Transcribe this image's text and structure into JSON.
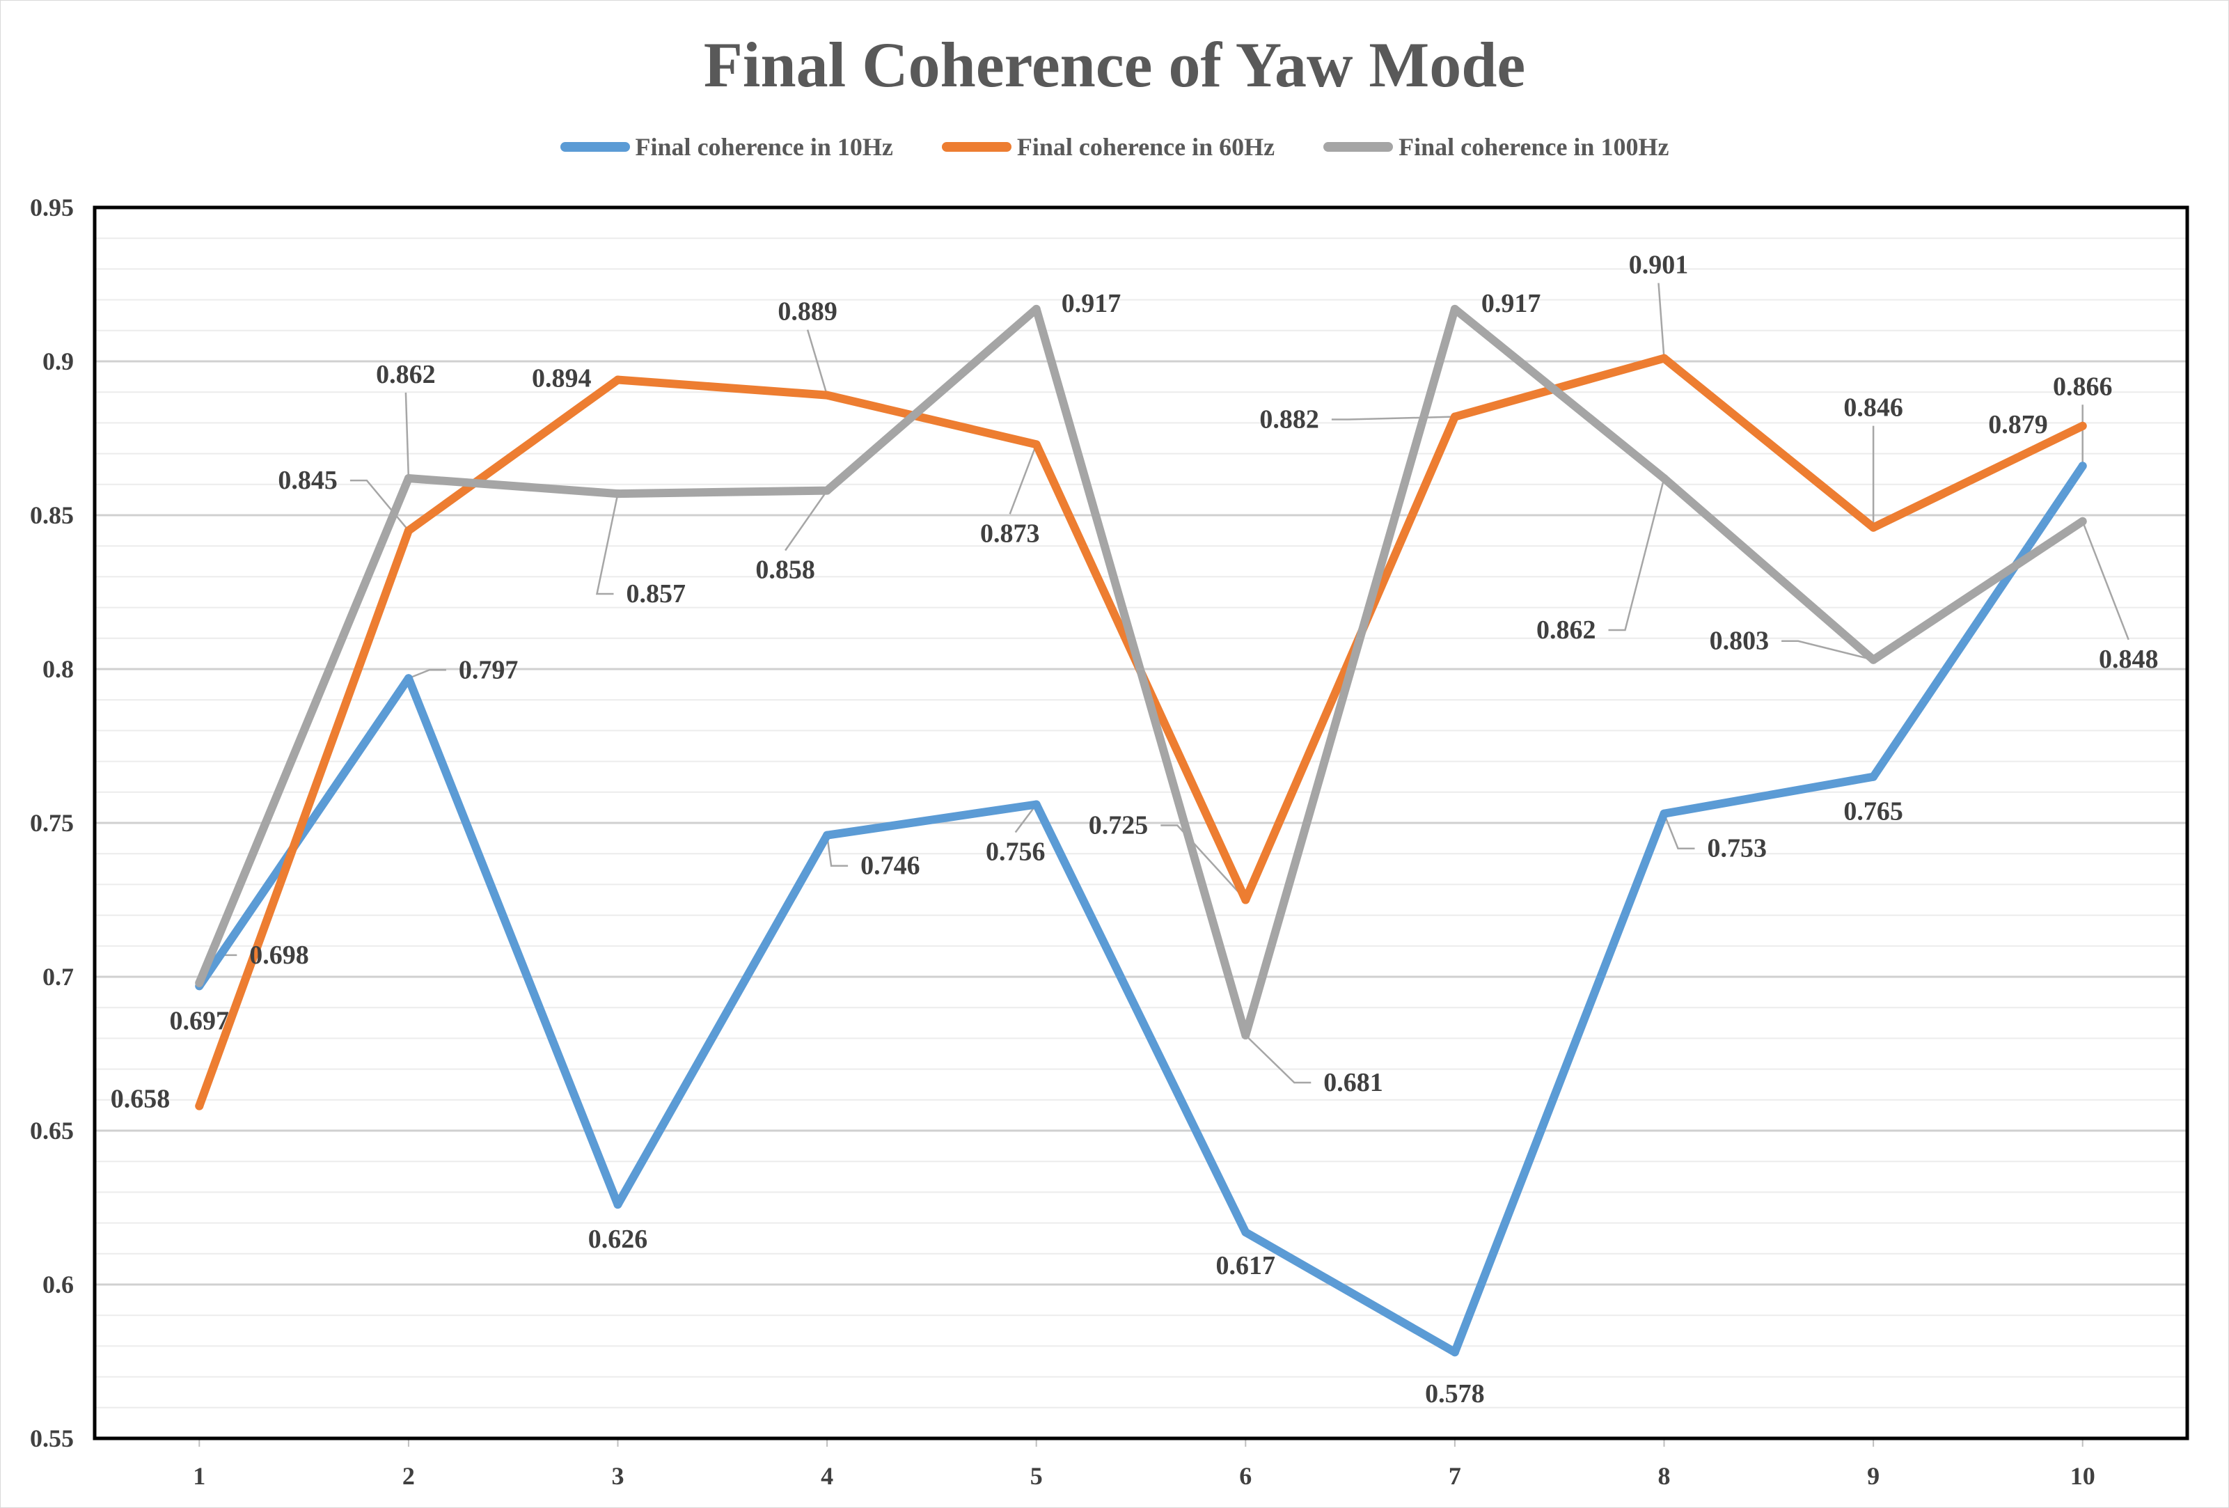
{
  "chart_data": {
    "type": "line",
    "title": "Final Coherence of Yaw Mode",
    "xlabel": "",
    "ylabel": "",
    "categories": [
      "1",
      "2",
      "3",
      "4",
      "5",
      "6",
      "7",
      "8",
      "9",
      "10"
    ],
    "ylim": [
      0.55,
      0.95
    ],
    "yticks": [
      "0.55",
      "0.6",
      "0.65",
      "0.7",
      "0.75",
      "0.8",
      "0.85",
      "0.9",
      "0.95"
    ],
    "grid": true,
    "legend": "top",
    "series": [
      {
        "name": "Final coherence in 10Hz",
        "color": "#5b9bd5",
        "values": [
          0.697,
          0.797,
          0.626,
          0.746,
          0.756,
          0.617,
          0.578,
          0.753,
          0.765,
          0.866
        ],
        "labels": [
          "0.697",
          "0.797",
          "0.626",
          "0.746",
          "0.756",
          "0.617",
          "0.578",
          "0.753",
          "0.765",
          "0.866"
        ]
      },
      {
        "name": "Final coherence in 60Hz",
        "color": "#ed7d31",
        "values": [
          0.658,
          0.845,
          0.894,
          0.889,
          0.873,
          0.725,
          0.882,
          0.901,
          0.846,
          0.879
        ],
        "labels": [
          "0.658",
          "0.845",
          "0.894",
          "0.889",
          "0.873",
          "0.725",
          "0.882",
          "0.901",
          "0.846",
          "0.879"
        ]
      },
      {
        "name": "Final coherence in 100Hz",
        "color": "#a5a5a5",
        "values": [
          0.698,
          0.862,
          0.857,
          0.858,
          0.917,
          0.681,
          0.917,
          0.862,
          0.803,
          0.848
        ],
        "labels": [
          "0.698",
          "0.862",
          "0.857",
          "0.858",
          "0.917",
          "0.681",
          "0.917",
          "0.862",
          "0.803",
          "0.848"
        ]
      }
    ]
  }
}
